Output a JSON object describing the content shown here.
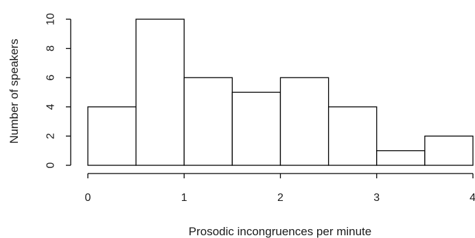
{
  "chart_data": {
    "type": "bar",
    "subtype": "histogram",
    "bins": [
      {
        "x0": 0.0,
        "x1": 0.5,
        "count": 4
      },
      {
        "x0": 0.5,
        "x1": 1.0,
        "count": 10
      },
      {
        "x0": 1.0,
        "x1": 1.5,
        "count": 6
      },
      {
        "x0": 1.5,
        "x1": 2.0,
        "count": 5
      },
      {
        "x0": 2.0,
        "x1": 2.5,
        "count": 6
      },
      {
        "x0": 2.5,
        "x1": 3.0,
        "count": 4
      },
      {
        "x0": 3.0,
        "x1": 3.5,
        "count": 1
      },
      {
        "x0": 3.5,
        "x1": 4.0,
        "count": 2
      }
    ],
    "xlabel": "Prosodic incongruences per minute",
    "ylabel": "Number of speakers",
    "xlim": [
      0,
      4
    ],
    "ylim": [
      0,
      10
    ],
    "xticks": [
      "0",
      "1",
      "2",
      "3",
      "4"
    ],
    "yticks": [
      "0",
      "2",
      "4",
      "6",
      "8",
      "10"
    ],
    "grid": false,
    "colors": {
      "bar_fill": "#ffffff",
      "bar_stroke": "#000000"
    }
  }
}
